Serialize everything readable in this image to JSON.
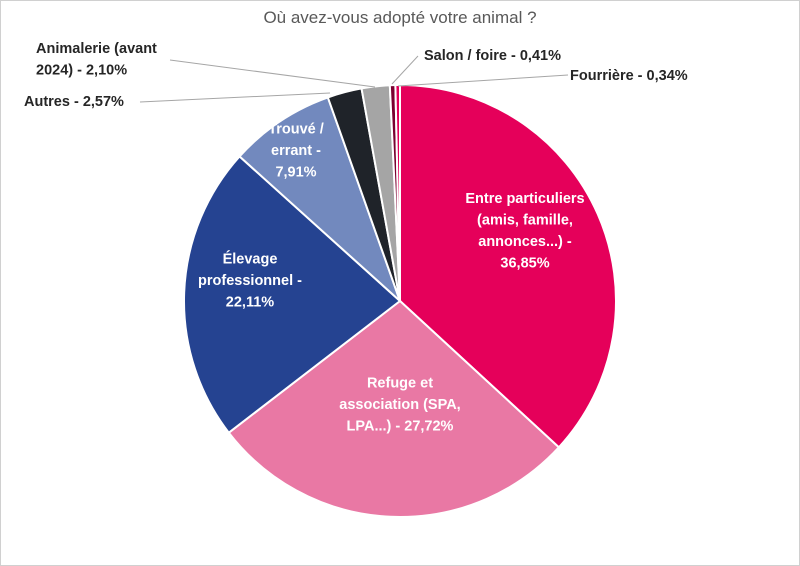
{
  "chart_data": {
    "type": "pie",
    "title": "Où avez-vous adopté votre animal ?",
    "slices": [
      {
        "label": "Entre particuliers (amis, famille, annonces...)",
        "value": 36.85,
        "color": "#E5005A",
        "text_lines": [
          "Entre particuliers",
          "(amis, famille,",
          "annonces...) -",
          "36,85%"
        ]
      },
      {
        "label": "Refuge et association (SPA, LPA...)",
        "value": 27.72,
        "color": "#E978A4",
        "text_lines": [
          "Refuge et",
          "association (SPA,",
          "LPA...) - 27,72%"
        ]
      },
      {
        "label": "Élevage professionnel",
        "value": 22.11,
        "color": "#254391",
        "text_lines": [
          "Élevage",
          "professionnel -",
          "22,11%"
        ]
      },
      {
        "label": "Trouvé / errant",
        "value": 7.91,
        "color": "#7289BE",
        "text_lines": [
          "Trouvé /",
          "errant -",
          "7,91%"
        ]
      },
      {
        "label": "Autres",
        "value": 2.57,
        "color": "#1F2329",
        "text_lines": [
          "Autres - 2,57%"
        ]
      },
      {
        "label": "Animalerie (avant 2024)",
        "value": 2.1,
        "color": "#A5A5A5",
        "text_lines": [
          "Animalerie (avant",
          "2024) - 2,10%"
        ]
      },
      {
        "label": "Salon / foire",
        "value": 0.41,
        "color": "#7A0030",
        "text_lines": [
          "Salon / foire - 0,41%"
        ]
      },
      {
        "label": "Fourrière",
        "value": 0.34,
        "color": "#E5005A",
        "text_lines": [
          "Fourrière - 0,34%"
        ]
      }
    ]
  }
}
